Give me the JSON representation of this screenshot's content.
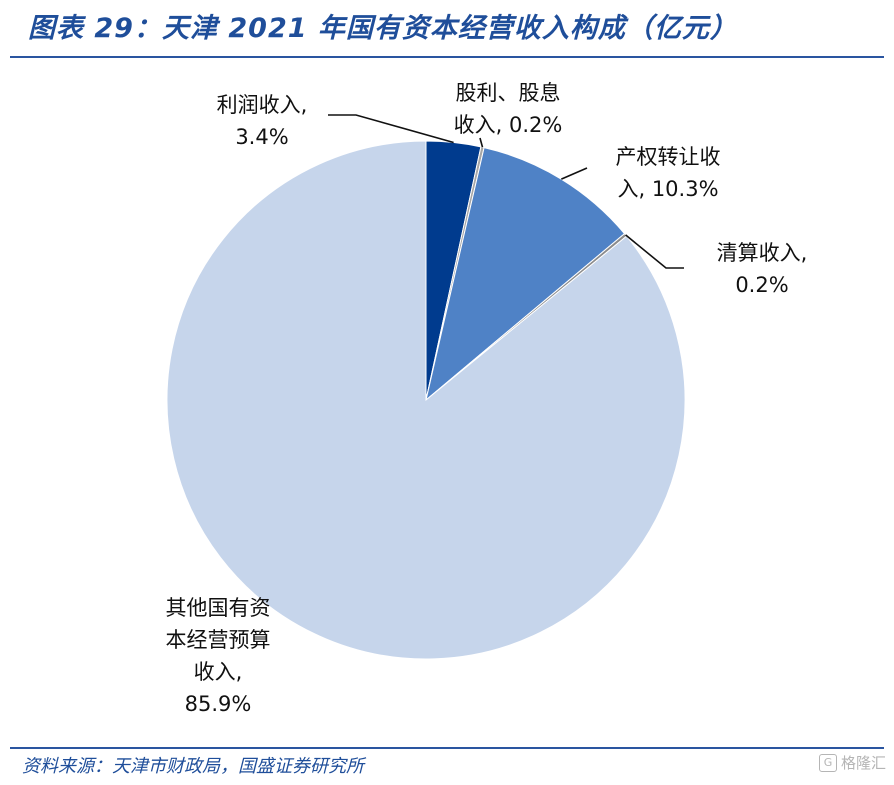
{
  "header": {
    "title": "图表 29：天津 2021 年国有资本经营收入构成（亿元）"
  },
  "footer": {
    "source": "资料来源：天津市财政局，国盛证券研究所",
    "watermark": "格隆汇"
  },
  "chart_data": {
    "type": "pie",
    "title": "图表 29：天津 2021 年国有资本经营收入构成（亿元）",
    "start_angle": "12 o'clock",
    "direction": "clockwise",
    "slices": [
      {
        "label_lines": [
          "利润收入,",
          "3.4%"
        ],
        "value": 3.4,
        "color": "#003b8e"
      },
      {
        "label_lines": [
          "股利、股息",
          "收入, 0.2%"
        ],
        "value": 0.2,
        "color": "#a6a6a6"
      },
      {
        "label_lines": [
          "产权转让收",
          "入, 10.3%"
        ],
        "value": 10.3,
        "color": "#4f82c6"
      },
      {
        "label_lines": [
          "清算收入,",
          "0.2%"
        ],
        "value": 0.2,
        "color": "#8c8c8c"
      },
      {
        "label_lines": [
          "其他国有资",
          "本经营预算",
          "收入,",
          "85.9%"
        ],
        "value": 85.9,
        "color": "#c6d5eb"
      }
    ]
  }
}
